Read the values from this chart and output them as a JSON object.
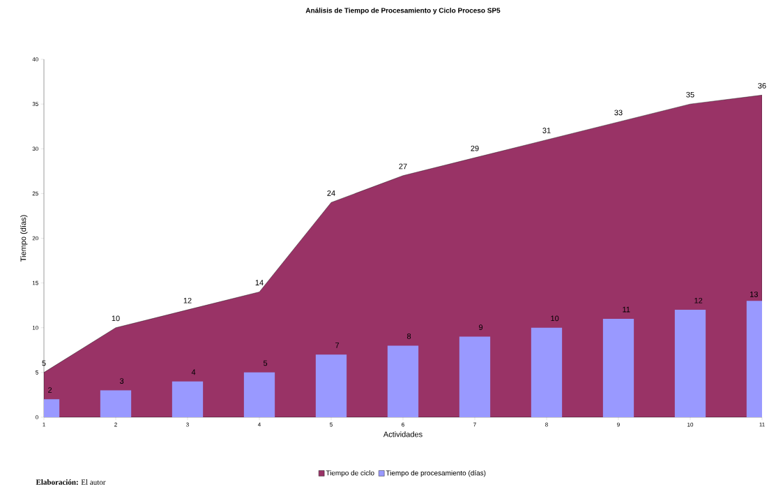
{
  "chart_data": {
    "type": "area",
    "title": "Análisis de Tiempo de Procesamiento y Ciclo Proceso SP5",
    "xlabel": "Actividades",
    "ylabel": "Tiempo (días)",
    "x": [
      1,
      2,
      3,
      4,
      5,
      6,
      7,
      8,
      9,
      10,
      11
    ],
    "series": [
      {
        "name": "Tiempo de ciclo",
        "color": "#993366",
        "values": [
          5,
          10,
          12,
          14,
          24,
          27,
          29,
          31,
          33,
          35,
          36
        ]
      },
      {
        "name": "Tiempo de procesamiento (días)",
        "type": "bar",
        "color": "#9999ff",
        "values": [
          2,
          3,
          4,
          5,
          7,
          8,
          9,
          10,
          11,
          12,
          13
        ]
      }
    ],
    "xlim": [
      1,
      11
    ],
    "xticks": [
      1,
      2,
      3,
      4,
      5,
      6,
      7,
      8,
      9,
      10,
      11
    ],
    "ylim": [
      0,
      40
    ],
    "yticks": [
      0,
      5,
      10,
      15,
      20,
      25,
      30,
      35,
      40
    ],
    "data_labels": true,
    "grid": false,
    "legend": "bottom",
    "annotations": [
      "**Elaboración:** El autor"
    ]
  }
}
